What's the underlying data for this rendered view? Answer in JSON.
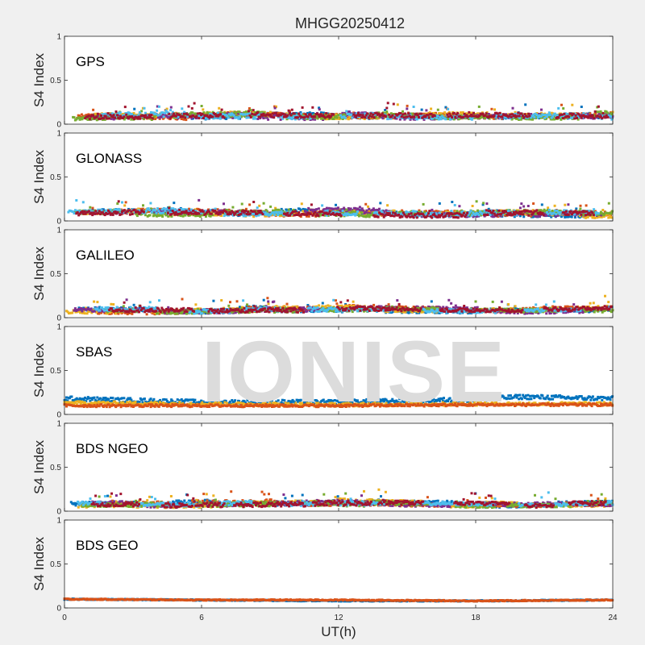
{
  "title": "MHGG20250412",
  "watermark": "IONISE",
  "xlabel": "UT(h)",
  "colors": [
    "#0072BD",
    "#D95319",
    "#EDB120",
    "#7E2F8E",
    "#77AC30",
    "#4DBEEE",
    "#A2142F"
  ],
  "chart_data": {
    "type": "scatter",
    "xlim": [
      0,
      24
    ],
    "xticks": [
      "0",
      "6",
      "12",
      "18",
      "24"
    ],
    "ylim": [
      0,
      1
    ],
    "yticks": [
      "0",
      "0.5",
      "1"
    ],
    "ylabel": "S4 Index",
    "panels": [
      {
        "label": "GPS",
        "profile": [
          [
            0,
            0.07,
            0.04
          ],
          [
            2,
            0.09,
            0.05
          ],
          [
            5,
            0.09,
            0.06
          ],
          [
            8,
            0.1,
            0.06
          ],
          [
            11,
            0.09,
            0.05
          ],
          [
            14,
            0.1,
            0.06
          ],
          [
            16,
            0.09,
            0.05
          ],
          [
            19,
            0.09,
            0.05
          ],
          [
            24,
            0.1,
            0.06
          ]
        ],
        "series": 7
      },
      {
        "label": "GLONASS",
        "profile": [
          [
            0,
            0.08,
            0.04
          ],
          [
            4,
            0.1,
            0.06
          ],
          [
            8,
            0.09,
            0.05
          ],
          [
            12,
            0.1,
            0.06
          ],
          [
            16,
            0.08,
            0.05
          ],
          [
            20,
            0.09,
            0.06
          ],
          [
            24,
            0.07,
            0.04
          ]
        ],
        "series": 7
      },
      {
        "label": "GALILEO",
        "profile": [
          [
            0,
            0.08,
            0.04
          ],
          [
            4,
            0.08,
            0.05
          ],
          [
            8,
            0.1,
            0.05
          ],
          [
            12,
            0.1,
            0.05
          ],
          [
            16,
            0.09,
            0.04
          ],
          [
            20,
            0.08,
            0.04
          ],
          [
            24,
            0.1,
            0.05
          ]
        ],
        "series": 7
      },
      {
        "label": "SBAS",
        "bands": [
          {
            "color": "#0072BD",
            "profile": [
              [
                0,
                0.18
              ],
              [
                6,
                0.14
              ],
              [
                12,
                0.14
              ],
              [
                18,
                0.17
              ],
              [
                20,
                0.2
              ],
              [
                24,
                0.18
              ]
            ],
            "noise": 0.025
          },
          {
            "color": "#EDB120",
            "profile": [
              [
                0,
                0.13
              ],
              [
                6,
                0.12
              ],
              [
                12,
                0.11
              ],
              [
                18,
                0.12
              ],
              [
                24,
                0.12
              ]
            ],
            "noise": 0.02
          },
          {
            "color": "#D95319",
            "profile": [
              [
                0,
                0.1
              ],
              [
                6,
                0.1
              ],
              [
                12,
                0.1
              ],
              [
                18,
                0.11
              ],
              [
                24,
                0.11
              ]
            ],
            "noise": 0.015
          }
        ]
      },
      {
        "label": "BDS NGEO",
        "profile": [
          [
            0,
            0.07,
            0.04
          ],
          [
            4,
            0.08,
            0.05
          ],
          [
            8,
            0.09,
            0.05
          ],
          [
            12,
            0.1,
            0.06
          ],
          [
            16,
            0.08,
            0.04
          ],
          [
            20,
            0.07,
            0.04
          ],
          [
            24,
            0.08,
            0.05
          ]
        ],
        "series": 7
      },
      {
        "label": "BDS GEO",
        "bands": [
          {
            "color": "#0072BD",
            "profile": [
              [
                0,
                0.1
              ],
              [
                6,
                0.09
              ],
              [
                12,
                0.08
              ],
              [
                18,
                0.08
              ],
              [
                24,
                0.09
              ]
            ],
            "noise": 0.006
          },
          {
            "color": "#D95319",
            "profile": [
              [
                0,
                0.1
              ],
              [
                6,
                0.09
              ],
              [
                12,
                0.09
              ],
              [
                18,
                0.08
              ],
              [
                24,
                0.09
              ]
            ],
            "noise": 0.006
          }
        ]
      }
    ]
  }
}
